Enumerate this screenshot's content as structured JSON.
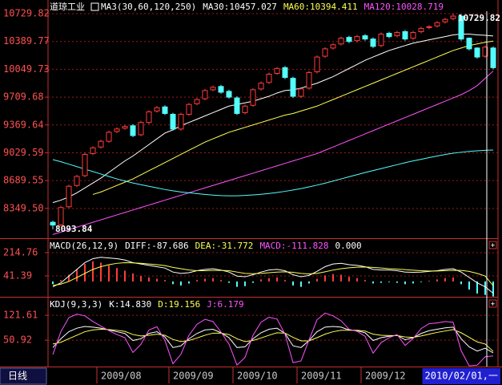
{
  "period_button": "日线",
  "chart_data": [
    {
      "type": "candlestick",
      "title": "道琼工业",
      "subtitle": "MA3(30,60,120,250)",
      "categories": [
        null,
        null,
        null,
        null,
        null,
        null,
        "2009/08",
        null,
        null,
        null,
        null,
        null,
        null,
        null,
        null,
        "2009/09",
        null,
        null,
        null,
        null,
        null,
        null,
        null,
        "2009/10",
        null,
        null,
        null,
        null,
        null,
        null,
        null,
        "2009/11",
        null,
        null,
        null,
        null,
        null,
        null,
        null,
        "2009/12",
        null,
        null,
        null,
        null,
        null,
        null,
        null,
        null,
        null,
        null,
        null,
        null,
        null,
        null,
        null,
        "2010/02/01,一"
      ],
      "open": [
        8180,
        8150,
        8370,
        8630,
        8750,
        9020,
        9100,
        9170,
        9290,
        9330,
        9360,
        9250,
        9400,
        9540,
        9590,
        9500,
        9320,
        9500,
        9630,
        9690,
        9800,
        9840,
        9780,
        9700,
        9520,
        9610,
        9810,
        9890,
        10000,
        10070,
        9940,
        9720,
        9820,
        10020,
        10210,
        10310,
        10360,
        10440,
        10400,
        10460,
        10420,
        10340,
        10490,
        10460,
        10510,
        10430,
        10510,
        10560,
        10580,
        10630,
        10670,
        10700,
        10430,
        10310,
        10210,
        10310
      ],
      "high": [
        8200,
        8380,
        8640,
        8760,
        9030,
        9110,
        9190,
        9300,
        9340,
        9370,
        9380,
        9420,
        9550,
        9600,
        9610,
        9520,
        9520,
        9640,
        9700,
        9810,
        9850,
        9860,
        9800,
        9720,
        9620,
        9820,
        9900,
        10010,
        10080,
        10090,
        9960,
        9830,
        10030,
        10220,
        10320,
        10370,
        10450,
        10460,
        10470,
        10480,
        10440,
        10500,
        10510,
        10520,
        10530,
        10520,
        10570,
        10590,
        10640,
        10680,
        10729.82,
        10710,
        10440,
        10320,
        10340,
        10330
      ],
      "low": [
        8093.84,
        8130,
        8350,
        8610,
        8730,
        9000,
        9080,
        9150,
        9270,
        9310,
        9220,
        9230,
        9380,
        9520,
        9490,
        9300,
        9300,
        9480,
        9610,
        9670,
        9780,
        9750,
        9690,
        9490,
        9500,
        9590,
        9790,
        9870,
        9980,
        9930,
        9700,
        9700,
        9800,
        10000,
        10190,
        10290,
        10340,
        10370,
        10380,
        10400,
        10310,
        10320,
        10430,
        10440,
        10400,
        10410,
        10490,
        10540,
        10560,
        10610,
        10650,
        10400,
        10280,
        10180,
        10190,
        10050
      ],
      "close": [
        8146,
        8360,
        8620,
        8740,
        9010,
        9090,
        9170,
        9280,
        9320,
        9350,
        9240,
        9400,
        9530,
        9580,
        9510,
        9320,
        9500,
        9620,
        9680,
        9790,
        9830,
        9770,
        9710,
        9510,
        9600,
        9800,
        9880,
        9990,
        10060,
        9950,
        9720,
        9810,
        10010,
        10200,
        10300,
        10350,
        10430,
        10390,
        10450,
        10420,
        10330,
        10480,
        10450,
        10500,
        10420,
        10500,
        10550,
        10570,
        10620,
        10660,
        10700,
        10420,
        10300,
        10200,
        10320,
        10070
      ],
      "up_color": "#ff3c3c",
      "down_color": "#54fcfc",
      "series": [
        {
          "name": "MA30:10457.027",
          "color": "#ffffff",
          "values": [
            8420,
            8450,
            8490,
            8540,
            8600,
            8660,
            8720,
            8790,
            8860,
            8930,
            8990,
            9060,
            9130,
            9200,
            9270,
            9310,
            9360,
            9400,
            9440,
            9480,
            9520,
            9560,
            9600,
            9620,
            9640,
            9660,
            9690,
            9720,
            9760,
            9790,
            9800,
            9820,
            9850,
            9880,
            9920,
            9960,
            10010,
            10060,
            10110,
            10160,
            10200,
            10240,
            10280,
            10310,
            10340,
            10370,
            10390,
            10410,
            10430,
            10450,
            10470,
            10480,
            10480,
            10470,
            10465,
            10457.027
          ]
        },
        {
          "name": "MA60:10394.411",
          "color": "#ffff54",
          "values": [
            null,
            null,
            null,
            null,
            null,
            8520,
            8550,
            8590,
            8630,
            8670,
            8710,
            8760,
            8810,
            8860,
            8910,
            8960,
            9010,
            9060,
            9110,
            9160,
            9200,
            9240,
            9280,
            9310,
            9340,
            9370,
            9400,
            9430,
            9460,
            9490,
            9510,
            9540,
            9570,
            9600,
            9640,
            9680,
            9720,
            9760,
            9800,
            9840,
            9880,
            9920,
            9960,
            10000,
            10040,
            10080,
            10120,
            10160,
            10200,
            10240,
            10280,
            10310,
            10340,
            10360,
            10380,
            10394.411
          ]
        },
        {
          "name": "MA120:10028.719",
          "color": "#ff54ff",
          "values": [
            8030,
            8060,
            8090,
            8120,
            8150,
            8180,
            8210,
            8240,
            8270,
            8300,
            8330,
            8360,
            8390,
            8420,
            8450,
            8480,
            8510,
            8540,
            8570,
            8600,
            8630,
            8660,
            8690,
            8720,
            8750,
            8780,
            8810,
            8840,
            8870,
            8900,
            8930,
            8960,
            8990,
            9020,
            9060,
            9100,
            9140,
            9180,
            9220,
            9260,
            9300,
            9340,
            9380,
            9420,
            9460,
            9500,
            9540,
            9580,
            9620,
            9660,
            9700,
            9740,
            9790,
            9850,
            9940,
            10028.719
          ]
        },
        {
          "color": "#54fcfc",
          "values": [
            8946,
            8920,
            8890,
            8860,
            8830,
            8800,
            8770,
            8740,
            8710,
            8685,
            8660,
            8640,
            8620,
            8600,
            8580,
            8565,
            8550,
            8540,
            8530,
            8520,
            8512,
            8506,
            8503,
            8504,
            8508,
            8514,
            8522,
            8532,
            8544,
            8558,
            8574,
            8592,
            8612,
            8634,
            8658,
            8684,
            8710,
            8736,
            8762,
            8788,
            8812,
            8836,
            8860,
            8884,
            8908,
            8930,
            8950,
            8970,
            8990,
            9008,
            9024,
            9036,
            9046,
            9054,
            9060,
            9064
          ]
        }
      ],
      "ylim": [
        7985,
        10897
      ],
      "yticks": [
        10729.82,
        10389.77,
        10049.73,
        9709.68,
        9369.64,
        9029.59,
        8689.55,
        {
          "value": 8349.5,
          "label": "8349.50"
        }
      ],
      "grid": true
    },
    {
      "type": "macd",
      "title": "MACD(26,12,9)",
      "zero_label": "0.000",
      "series": [
        {
          "name": "DIFF:-87.686",
          "color": "#ffffff",
          "values": [
            -40,
            -10,
            40,
            90,
            140,
            170,
            180,
            175,
            170,
            160,
            140,
            130,
            120,
            110,
            100,
            70,
            60,
            65,
            80,
            90,
            95,
            85,
            70,
            40,
            35,
            50,
            70,
            85,
            90,
            80,
            50,
            35,
            45,
            75,
            110,
            130,
            135,
            125,
            120,
            110,
            90,
            85,
            85,
            80,
            70,
            68,
            70,
            75,
            80,
            90,
            95,
            70,
            30,
            -10,
            -40,
            -87.686
          ]
        },
        {
          "name": "DEA:-31.772",
          "color": "#ffff54",
          "values": [
            -30,
            -20,
            0,
            30,
            60,
            90,
            110,
            125,
            135,
            140,
            138,
            135,
            130,
            125,
            118,
            105,
            95,
            85,
            80,
            80,
            82,
            82,
            80,
            70,
            60,
            58,
            60,
            65,
            70,
            72,
            68,
            60,
            56,
            60,
            72,
            85,
            95,
            102,
            106,
            108,
            105,
            100,
            95,
            92,
            88,
            84,
            80,
            78,
            78,
            80,
            83,
            82,
            75,
            60,
            40,
            -31.772
          ]
        },
        {
          "name": "MACD:-111.828",
          "type": "bar",
          "color": "#ff54ff",
          "up_color": "#ff3c3c",
          "down_color": "#54fcfc",
          "values": [
            -20,
            10,
            50,
            90,
            130,
            150,
            140,
            120,
            100,
            80,
            60,
            40,
            30,
            20,
            10,
            -20,
            -30,
            -15,
            10,
            20,
            25,
            10,
            -10,
            -40,
            -35,
            -10,
            15,
            25,
            30,
            10,
            -30,
            -40,
            -15,
            20,
            45,
            55,
            50,
            35,
            25,
            10,
            -15,
            -10,
            -5,
            -10,
            -20,
            -15,
            -5,
            5,
            15,
            25,
            30,
            -20,
            -60,
            -90,
            -100,
            -111.828
          ]
        }
      ],
      "ylim": [
        -114,
        316
      ],
      "yticks": [
        214.76,
        41.39
      ],
      "grid": true
    },
    {
      "type": "line",
      "title": "KDJ(9,3,3)",
      "series": [
        {
          "name": "K:14.830",
          "color": "#ffffff",
          "values": [
            30,
            55,
            75,
            85,
            90,
            88,
            85,
            80,
            75,
            70,
            50,
            55,
            70,
            75,
            60,
            30,
            35,
            55,
            70,
            80,
            82,
            72,
            58,
            30,
            32,
            55,
            72,
            82,
            85,
            70,
            35,
            30,
            50,
            75,
            88,
            90,
            88,
            80,
            78,
            72,
            50,
            58,
            62,
            65,
            52,
            58,
            70,
            78,
            82,
            86,
            88,
            55,
            32,
            20,
            28,
            14.83
          ]
        },
        {
          "name": "D:19.156",
          "color": "#ffff54",
          "values": [
            40,
            45,
            55,
            65,
            75,
            80,
            82,
            81,
            79,
            76,
            67,
            63,
            65,
            68,
            65,
            53,
            47,
            50,
            57,
            65,
            71,
            71,
            67,
            55,
            47,
            50,
            57,
            65,
            72,
            71,
            59,
            49,
            49,
            58,
            68,
            75,
            79,
            79,
            79,
            77,
            68,
            65,
            64,
            64,
            60,
            59,
            63,
            68,
            73,
            77,
            81,
            72,
            59,
            46,
            40,
            19.156
          ]
        },
        {
          "name": "J:6.179",
          "color": "#ff54ff",
          "values": [
            10,
            75,
            115,
            125,
            120,
            104,
            91,
            78,
            67,
            58,
            16,
            39,
            80,
            89,
            50,
            -16,
            11,
            65,
            96,
            110,
            104,
            74,
            40,
            -20,
            2,
            65,
            102,
            116,
            111,
            68,
            -13,
            -8,
            52,
            109,
            128,
            120,
            106,
            82,
            76,
            62,
            14,
            44,
            58,
            67,
            36,
            56,
            84,
            98,
            100,
            104,
            102,
            21,
            -22,
            -20,
            4,
            6.179
          ]
        }
      ],
      "ylim": [
        -24,
        172
      ],
      "yticks": [
        121.61,
        50.92
      ],
      "grid": true
    }
  ]
}
